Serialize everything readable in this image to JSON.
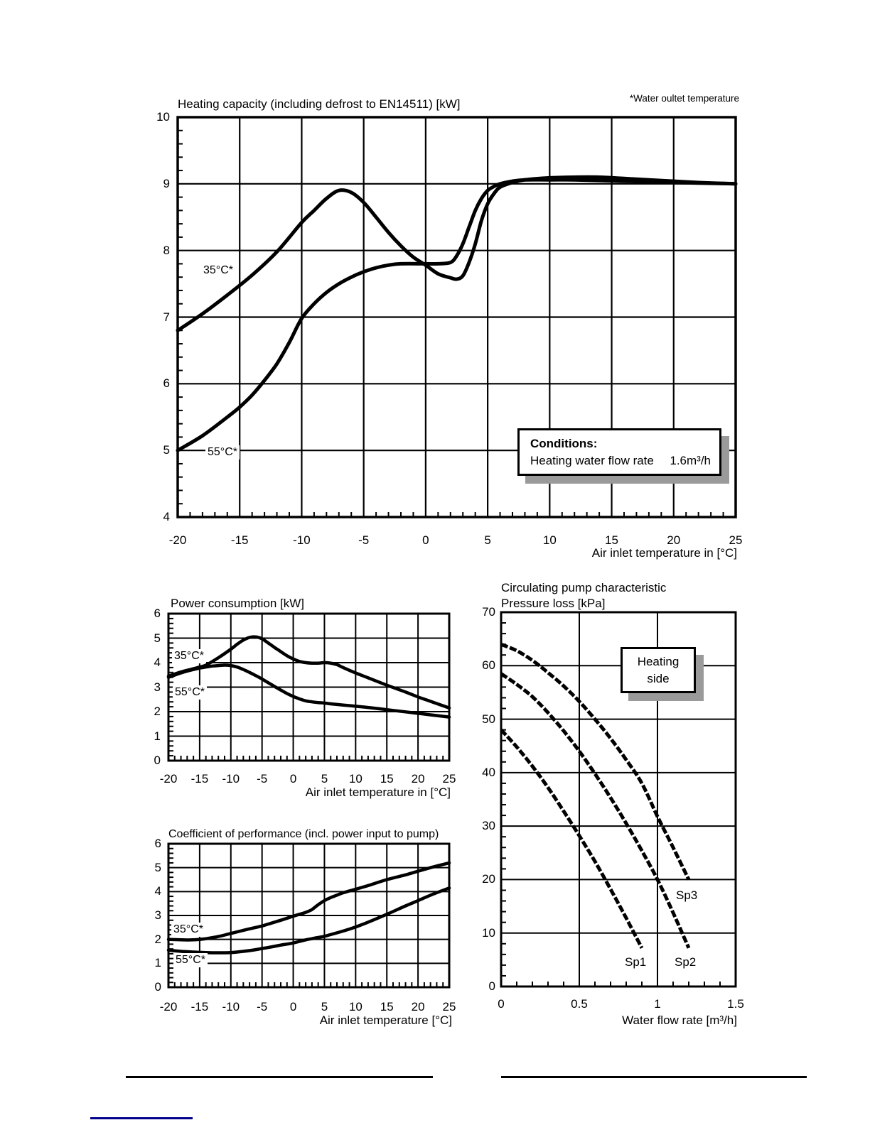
{
  "note_top_right": "*Water oultet temperature",
  "conditions_box": {
    "heading": "Conditions:",
    "label": "Heating water flow rate",
    "value": "1.6m³/h"
  },
  "heating_side_box": {
    "line1": "Heating",
    "line2": "side"
  },
  "colors": {
    "curve": "#000000",
    "footer_line_blue": "#00008b",
    "box_shadow": "#9a9a9a"
  },
  "chart_data": [
    {
      "name": "heating-capacity",
      "type": "line",
      "title": "Heating capacity (including defrost to EN14511) [kW]",
      "xlabel": "Air inlet temperature in [°C]",
      "ylabel": "",
      "xlim": [
        -20,
        25
      ],
      "ylim": [
        4,
        10
      ],
      "grid": true,
      "legend": "none",
      "x_tick_labels": [
        "-20",
        "-15",
        "-10",
        "-5",
        "0",
        "5",
        "10",
        "15",
        "20",
        "25"
      ],
      "y_tick_labels": [
        "10",
        "9",
        "8",
        "7",
        "6",
        "5",
        "4"
      ],
      "series": [
        {
          "name": "35C-water-outlet",
          "label": "35°C*",
          "points": [
            [
              -20,
              6.8
            ],
            [
              -18,
              7.05
            ],
            [
              -16,
              7.33
            ],
            [
              -14,
              7.63
            ],
            [
              -12,
              7.98
            ],
            [
              -10,
              8.42
            ],
            [
              -9,
              8.6
            ],
            [
              -8,
              8.78
            ],
            [
              -7,
              8.9
            ],
            [
              -6,
              8.87
            ],
            [
              -5,
              8.72
            ],
            [
              -4,
              8.5
            ],
            [
              -3,
              8.27
            ],
            [
              -2,
              8.07
            ],
            [
              -1,
              7.9
            ],
            [
              0,
              7.78
            ],
            [
              1,
              7.65
            ],
            [
              2,
              7.59
            ],
            [
              2.5,
              7.57
            ],
            [
              3,
              7.62
            ],
            [
              3.5,
              7.82
            ],
            [
              4,
              8.1
            ],
            [
              4.5,
              8.45
            ],
            [
              5,
              8.7
            ],
            [
              5.5,
              8.85
            ],
            [
              6,
              8.95
            ],
            [
              7,
              9.02
            ],
            [
              8,
              9.06
            ],
            [
              10,
              9.09
            ],
            [
              12,
              9.1
            ],
            [
              14,
              9.1
            ],
            [
              16,
              9.08
            ],
            [
              18,
              9.06
            ],
            [
              20,
              9.04
            ],
            [
              22,
              9.02
            ],
            [
              25,
              9.0
            ]
          ]
        },
        {
          "name": "55C-water-outlet",
          "label": "55°C*",
          "points": [
            [
              -20,
              5.0
            ],
            [
              -18,
              5.22
            ],
            [
              -16,
              5.5
            ],
            [
              -15,
              5.65
            ],
            [
              -14,
              5.83
            ],
            [
              -13,
              6.05
            ],
            [
              -12,
              6.3
            ],
            [
              -11,
              6.62
            ],
            [
              -10,
              6.98
            ],
            [
              -9,
              7.2
            ],
            [
              -8,
              7.37
            ],
            [
              -7,
              7.5
            ],
            [
              -6,
              7.6
            ],
            [
              -5,
              7.68
            ],
            [
              -4,
              7.74
            ],
            [
              -3,
              7.78
            ],
            [
              -2,
              7.8
            ],
            [
              0,
              7.8
            ],
            [
              1,
              7.8
            ],
            [
              2,
              7.82
            ],
            [
              2.5,
              7.92
            ],
            [
              3,
              8.1
            ],
            [
              3.5,
              8.35
            ],
            [
              4,
              8.6
            ],
            [
              4.5,
              8.78
            ],
            [
              5,
              8.9
            ],
            [
              5.5,
              8.96
            ],
            [
              6,
              9.0
            ],
            [
              7,
              9.04
            ],
            [
              8,
              9.06
            ],
            [
              10,
              9.06
            ],
            [
              12,
              9.06
            ],
            [
              14,
              9.05
            ],
            [
              16,
              9.04
            ],
            [
              18,
              9.03
            ],
            [
              20,
              9.02
            ],
            [
              25,
              9.0
            ]
          ]
        }
      ]
    },
    {
      "name": "power-consumption",
      "type": "line",
      "title": "Power consumption [kW]",
      "xlabel": "Air inlet temperature in [°C]",
      "ylabel": "",
      "xlim": [
        -20,
        25
      ],
      "ylim": [
        0,
        6
      ],
      "grid": true,
      "legend": "none",
      "x_tick_labels": [
        "-20",
        "-15",
        "-10",
        "-5",
        "0",
        "5",
        "10",
        "15",
        "20",
        "25"
      ],
      "y_tick_labels": [
        "6",
        "5",
        "4",
        "3",
        "2",
        "1",
        "0"
      ],
      "series": [
        {
          "name": "35C-water-outlet",
          "label": "35°C*",
          "points": [
            [
              -20,
              3.45
            ],
            [
              -18,
              3.62
            ],
            [
              -16,
              3.75
            ],
            [
              -15,
              3.82
            ],
            [
              -14,
              3.9
            ],
            [
              -12,
              4.2
            ],
            [
              -10,
              4.55
            ],
            [
              -9,
              4.75
            ],
            [
              -8,
              4.92
            ],
            [
              -7,
              5.03
            ],
            [
              -6,
              5.05
            ],
            [
              -5,
              4.97
            ],
            [
              -4,
              4.8
            ],
            [
              -3,
              4.62
            ],
            [
              -2,
              4.45
            ],
            [
              -1,
              4.28
            ],
            [
              0,
              4.15
            ],
            [
              1,
              4.05
            ],
            [
              2,
              4.0
            ],
            [
              3,
              3.98
            ],
            [
              4,
              3.98
            ],
            [
              5,
              4.0
            ],
            [
              6,
              3.98
            ],
            [
              7,
              3.92
            ],
            [
              8,
              3.8
            ],
            [
              10,
              3.58
            ],
            [
              12,
              3.38
            ],
            [
              15,
              3.08
            ],
            [
              18,
              2.8
            ],
            [
              20,
              2.6
            ],
            [
              22,
              2.42
            ],
            [
              25,
              2.15
            ]
          ]
        },
        {
          "name": "55C-water-outlet",
          "label": "55°C*",
          "points": [
            [
              -20,
              3.4
            ],
            [
              -18,
              3.58
            ],
            [
              -16,
              3.72
            ],
            [
              -15,
              3.78
            ],
            [
              -14,
              3.82
            ],
            [
              -13,
              3.86
            ],
            [
              -12,
              3.88
            ],
            [
              -11,
              3.9
            ],
            [
              -10,
              3.88
            ],
            [
              -9,
              3.82
            ],
            [
              -8,
              3.72
            ],
            [
              -7,
              3.6
            ],
            [
              -6,
              3.47
            ],
            [
              -5,
              3.33
            ],
            [
              -4,
              3.18
            ],
            [
              -3,
              3.03
            ],
            [
              -2,
              2.88
            ],
            [
              -1,
              2.74
            ],
            [
              0,
              2.62
            ],
            [
              1,
              2.52
            ],
            [
              2,
              2.44
            ],
            [
              3,
              2.4
            ],
            [
              4,
              2.37
            ],
            [
              5,
              2.35
            ],
            [
              6,
              2.32
            ],
            [
              8,
              2.27
            ],
            [
              10,
              2.22
            ],
            [
              12,
              2.17
            ],
            [
              15,
              2.08
            ],
            [
              18,
              1.99
            ],
            [
              20,
              1.93
            ],
            [
              22,
              1.87
            ],
            [
              25,
              1.78
            ]
          ]
        }
      ]
    },
    {
      "name": "coefficient-of-performance",
      "type": "line",
      "title": "Coefficient of performance (incl. power input to pump)",
      "xlabel": "Air inlet temperature [°C]",
      "ylabel": "",
      "xlim": [
        -20,
        25
      ],
      "ylim": [
        0,
        6
      ],
      "grid": true,
      "legend": "none",
      "x_tick_labels": [
        "-20",
        "-15",
        "-10",
        "-5",
        "0",
        "5",
        "10",
        "15",
        "20",
        "25"
      ],
      "y_tick_labels": [
        "6",
        "5",
        "4",
        "3",
        "2",
        "1",
        "0"
      ],
      "series": [
        {
          "name": "35C-water-outlet",
          "label": "35°C*",
          "points": [
            [
              -20,
              2.0
            ],
            [
              -18,
              1.98
            ],
            [
              -16,
              1.98
            ],
            [
              -15,
              2.0
            ],
            [
              -14,
              2.03
            ],
            [
              -12,
              2.12
            ],
            [
              -10,
              2.25
            ],
            [
              -8,
              2.38
            ],
            [
              -6,
              2.5
            ],
            [
              -5,
              2.56
            ],
            [
              -4,
              2.64
            ],
            [
              -2,
              2.8
            ],
            [
              0,
              2.97
            ],
            [
              1,
              3.05
            ],
            [
              2,
              3.13
            ],
            [
              3,
              3.25
            ],
            [
              4,
              3.45
            ],
            [
              5,
              3.62
            ],
            [
              6,
              3.75
            ],
            [
              7,
              3.85
            ],
            [
              8,
              3.95
            ],
            [
              10,
              4.1
            ],
            [
              12,
              4.25
            ],
            [
              15,
              4.5
            ],
            [
              18,
              4.7
            ],
            [
              20,
              4.85
            ],
            [
              22,
              5.0
            ],
            [
              25,
              5.2
            ]
          ]
        },
        {
          "name": "55C-water-outlet",
          "label": "55°C*",
          "points": [
            [
              -20,
              1.55
            ],
            [
              -18,
              1.5
            ],
            [
              -16,
              1.47
            ],
            [
              -14,
              1.45
            ],
            [
              -12,
              1.44
            ],
            [
              -10,
              1.45
            ],
            [
              -8,
              1.5
            ],
            [
              -6,
              1.57
            ],
            [
              -5,
              1.62
            ],
            [
              -4,
              1.66
            ],
            [
              -2,
              1.76
            ],
            [
              0,
              1.85
            ],
            [
              2,
              1.98
            ],
            [
              3,
              2.03
            ],
            [
              4,
              2.08
            ],
            [
              5,
              2.13
            ],
            [
              6,
              2.2
            ],
            [
              8,
              2.35
            ],
            [
              10,
              2.52
            ],
            [
              12,
              2.72
            ],
            [
              15,
              3.05
            ],
            [
              18,
              3.4
            ],
            [
              20,
              3.62
            ],
            [
              22,
              3.85
            ],
            [
              25,
              4.15
            ]
          ]
        }
      ]
    },
    {
      "name": "pressure-loss",
      "type": "line",
      "title": "Circulating pump characteristic",
      "xlabel": "Water flow rate [m³/h]",
      "ylabel": "Pressure loss [kPa]",
      "xlim": [
        0,
        1.5
      ],
      "ylim": [
        0,
        70
      ],
      "grid": true,
      "legend": "none",
      "x_tick_labels": [
        "0",
        "0.5",
        "1",
        "1.5"
      ],
      "y_tick_labels": [
        "70",
        "60",
        "50",
        "40",
        "30",
        "20",
        "10",
        "0"
      ],
      "series": [
        {
          "name": "pump-speed-1",
          "label": "Sp1",
          "points": [
            [
              0,
              48
            ],
            [
              0.1,
              44.8
            ],
            [
              0.2,
              41.2
            ],
            [
              0.3,
              37.2
            ],
            [
              0.4,
              32.8
            ],
            [
              0.5,
              28.2
            ],
            [
              0.6,
              23.4
            ],
            [
              0.7,
              18.2
            ],
            [
              0.8,
              12.8
            ],
            [
              0.9,
              7.2
            ]
          ]
        },
        {
          "name": "pump-speed-2",
          "label": "Sp2",
          "points": [
            [
              0,
              58.5
            ],
            [
              0.1,
              56.5
            ],
            [
              0.2,
              54.2
            ],
            [
              0.3,
              51.2
            ],
            [
              0.4,
              47.8
            ],
            [
              0.5,
              44.0
            ],
            [
              0.6,
              39.8
            ],
            [
              0.7,
              35.3
            ],
            [
              0.8,
              30.5
            ],
            [
              0.9,
              25.4
            ],
            [
              1.0,
              20.0
            ],
            [
              1.1,
              13.8
            ],
            [
              1.2,
              7.2
            ]
          ]
        },
        {
          "name": "pump-speed-3",
          "label": "Sp3",
          "points": [
            [
              0,
              64
            ],
            [
              0.1,
              62.8
            ],
            [
              0.2,
              61.0
            ],
            [
              0.3,
              58.7
            ],
            [
              0.4,
              56.2
            ],
            [
              0.5,
              53.3
            ],
            [
              0.6,
              50.0
            ],
            [
              0.7,
              46.4
            ],
            [
              0.8,
              42.4
            ],
            [
              0.9,
              38.0
            ],
            [
              1.0,
              31.8
            ],
            [
              1.1,
              26.0
            ],
            [
              1.2,
              20.0
            ]
          ]
        }
      ]
    }
  ]
}
